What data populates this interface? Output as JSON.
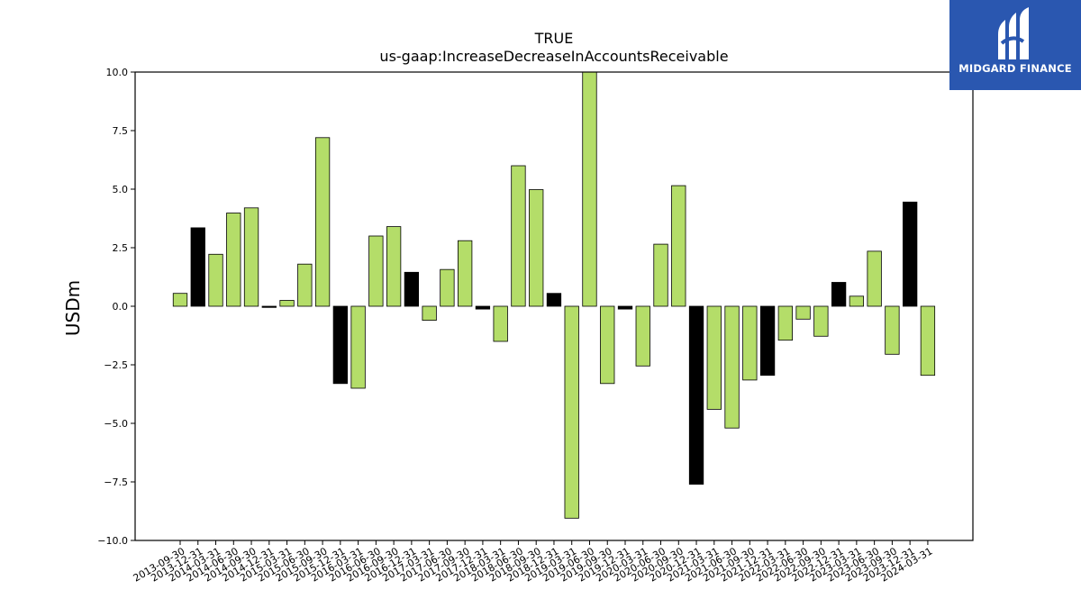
{
  "chart_data": {
    "type": "bar",
    "title": "TRUE",
    "subtitle": "us-gaap:IncreaseDecreaseInAccountsReceivable",
    "ylabel": "USDm",
    "xlabel": "",
    "ylim": [
      -10,
      10
    ],
    "yticks": [
      10.0,
      7.5,
      5.0,
      2.5,
      0.0,
      -2.5,
      -5.0,
      -7.5,
      -10.0
    ],
    "ytick_labels": [
      "10.0",
      "7.5",
      "5.0",
      "2.5",
      "0.0",
      "−2.5",
      "−5.0",
      "−7.5",
      "−10.0"
    ],
    "categories": [
      "2013-09-30",
      "2013-12-31",
      "2014-03-31",
      "2014-06-30",
      "2014-09-30",
      "2014-12-31",
      "2015-03-31",
      "2015-06-30",
      "2015-09-30",
      "2015-12-31",
      "2016-03-31",
      "2016-06-30",
      "2016-09-30",
      "2016-12-31",
      "2017-03-31",
      "2017-06-30",
      "2017-09-30",
      "2017-12-31",
      "2018-03-31",
      "2018-06-30",
      "2018-09-30",
      "2018-12-31",
      "2019-03-31",
      "2019-06-30",
      "2019-09-30",
      "2019-12-31",
      "2020-03-31",
      "2020-06-30",
      "2020-09-30",
      "2020-12-31",
      "2021-03-31",
      "2021-06-30",
      "2021-09-30",
      "2021-12-31",
      "2022-03-31",
      "2022-06-30",
      "2022-09-30",
      "2022-12-31",
      "2023-03-31",
      "2023-06-30",
      "2023-09-30",
      "2023-12-31",
      "2024-03-31"
    ],
    "values": [
      0.55,
      3.35,
      2.22,
      3.98,
      4.2,
      -0.05,
      0.25,
      1.8,
      7.2,
      -3.3,
      -3.5,
      3.0,
      3.4,
      1.45,
      -0.6,
      1.57,
      2.8,
      -0.12,
      -1.5,
      6.0,
      4.98,
      0.55,
      -9.05,
      10.2,
      -3.3,
      -0.12,
      -2.55,
      2.65,
      5.15,
      -7.6,
      -4.4,
      -5.2,
      -3.15,
      -2.95,
      -1.45,
      -0.55,
      -1.28,
      1.02,
      0.43,
      2.35,
      -2.05,
      4.45,
      -2.95
    ],
    "bar_colors": [
      "#b4dd69",
      "#000000",
      "#b4dd69",
      "#b4dd69",
      "#b4dd69",
      "#000000",
      "#b4dd69",
      "#b4dd69",
      "#b4dd69",
      "#000000",
      "#b4dd69",
      "#b4dd69",
      "#b4dd69",
      "#000000",
      "#b4dd69",
      "#b4dd69",
      "#b4dd69",
      "#000000",
      "#b4dd69",
      "#b4dd69",
      "#b4dd69",
      "#000000",
      "#b4dd69",
      "#b4dd69",
      "#b4dd69",
      "#000000",
      "#b4dd69",
      "#b4dd69",
      "#b4dd69",
      "#000000",
      "#b4dd69",
      "#b4dd69",
      "#b4dd69",
      "#000000",
      "#b4dd69",
      "#b4dd69",
      "#b4dd69",
      "#000000",
      "#b4dd69",
      "#b4dd69",
      "#b4dd69",
      "#000000",
      "#b4dd69"
    ],
    "grid": false,
    "legend": "none"
  },
  "logo": {
    "brand": "MIDGARD FINANCE",
    "background": "#2a57b0"
  }
}
